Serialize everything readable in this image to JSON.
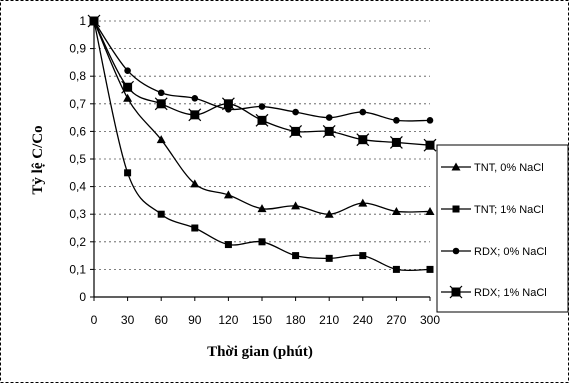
{
  "chart_data": {
    "type": "line",
    "title": "",
    "xlabel": "Thời gian (phút)",
    "ylabel": "Tỷ lệ C/Co",
    "x": [
      0,
      30,
      60,
      90,
      120,
      150,
      180,
      210,
      240,
      270,
      300
    ],
    "x_tick_labels": [
      "0",
      "30",
      "60",
      "90",
      "120",
      "150",
      "180",
      "210",
      "240",
      "270",
      "300"
    ],
    "y_tick_labels": [
      "0",
      "0,1",
      "0,2",
      "0,3",
      "0,4",
      "0,5",
      "0,6",
      "0,7",
      "0,8",
      "0,9",
      "1"
    ],
    "xlim": [
      0,
      300
    ],
    "ylim": [
      0,
      1
    ],
    "grid": "horizontal dashed",
    "legend_position": "right",
    "series": [
      {
        "name": "TNT, 0% NaCl",
        "marker": "triangle",
        "values": [
          1.0,
          0.72,
          0.57,
          0.41,
          0.37,
          0.32,
          0.33,
          0.3,
          0.34,
          0.31,
          0.31
        ]
      },
      {
        "name": "TNT; 1% NaCl",
        "marker": "square",
        "values": [
          1.0,
          0.45,
          0.3,
          0.25,
          0.19,
          0.2,
          0.15,
          0.14,
          0.15,
          0.1,
          0.1
        ]
      },
      {
        "name": "RDX; 0% NaCl",
        "marker": "circle",
        "values": [
          1.0,
          0.82,
          0.74,
          0.72,
          0.68,
          0.69,
          0.67,
          0.65,
          0.67,
          0.64,
          0.64
        ]
      },
      {
        "name": "RDX; 1% NaCl",
        "marker": "star",
        "values": [
          1.0,
          0.76,
          0.7,
          0.66,
          0.7,
          0.64,
          0.6,
          0.6,
          0.57,
          0.56,
          0.55
        ]
      }
    ]
  }
}
